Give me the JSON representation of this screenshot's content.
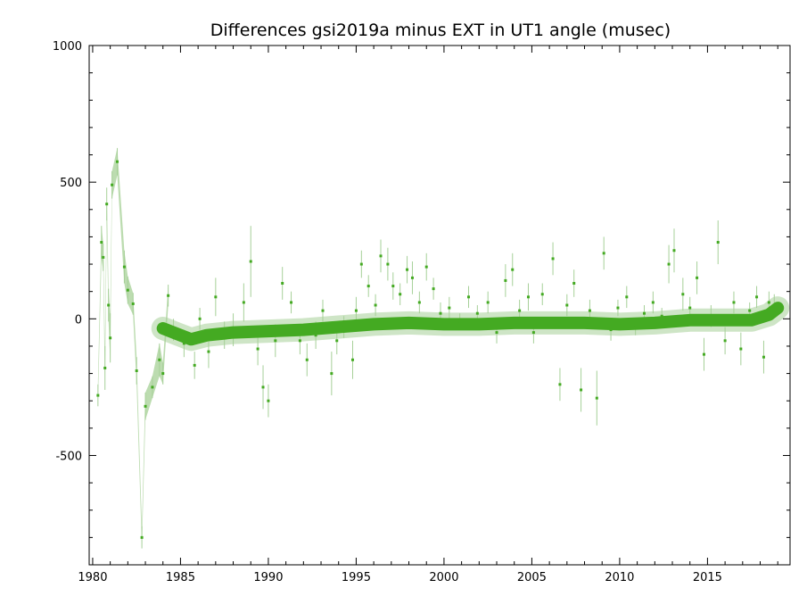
{
  "chart_data": {
    "type": "scatter",
    "title": "Differences gsi2019a minus EXT in UT1 angle    (musec)",
    "xlabel": "",
    "ylabel": "",
    "xlim": [
      1979.8,
      2019.7
    ],
    "ylim": [
      -900,
      1000
    ],
    "x_ticks": [
      1980,
      1985,
      1990,
      1995,
      2000,
      2005,
      2010,
      2015
    ],
    "x_tick_labels": [
      "1980",
      "1985",
      "1990",
      "1995",
      "2000",
      "2005",
      "2010",
      "2015"
    ],
    "y_ticks": [
      -500,
      0,
      500,
      1000
    ],
    "y_tick_labels": [
      "-500",
      "0",
      "500",
      "1000"
    ],
    "grid": false,
    "colors": {
      "points": "#44aa22",
      "error_bars": "#a6d098",
      "band": "#bcdcb0"
    },
    "series": [
      {
        "values": [
          [
            1980.3,
            -280,
            40
          ],
          [
            1980.5,
            280,
            60
          ],
          [
            1980.6,
            225,
            50
          ],
          [
            1980.7,
            -180,
            80
          ],
          [
            1980.8,
            420,
            60
          ],
          [
            1980.9,
            50,
            60
          ],
          [
            1981.0,
            -70,
            90
          ],
          [
            1981.1,
            490,
            50
          ],
          [
            1981.4,
            575,
            50
          ],
          [
            1981.8,
            190,
            60
          ],
          [
            1982.0,
            105,
            50
          ],
          [
            1982.3,
            55,
            40
          ],
          [
            1982.5,
            -190,
            50
          ],
          [
            1982.8,
            -800,
            40
          ],
          [
            1983.0,
            -320,
            50
          ],
          [
            1983.4,
            -250,
            40
          ],
          [
            1983.8,
            -150,
            60
          ],
          [
            1984.0,
            -200,
            40
          ],
          [
            1984.3,
            85,
            40
          ],
          [
            1984.6,
            -40,
            40
          ],
          [
            1985.2,
            -90,
            50
          ],
          [
            1985.8,
            -170,
            50
          ],
          [
            1986.1,
            0,
            40
          ],
          [
            1986.6,
            -120,
            60
          ],
          [
            1987.0,
            80,
            70
          ],
          [
            1987.5,
            -60,
            50
          ],
          [
            1988.0,
            -40,
            60
          ],
          [
            1988.6,
            60,
            70
          ],
          [
            1989.0,
            210,
            130
          ],
          [
            1989.4,
            -110,
            60
          ],
          [
            1989.7,
            -250,
            80
          ],
          [
            1990.0,
            -300,
            60
          ],
          [
            1990.4,
            -80,
            60
          ],
          [
            1990.8,
            130,
            60
          ],
          [
            1991.3,
            60,
            40
          ],
          [
            1991.8,
            -80,
            50
          ],
          [
            1992.2,
            -150,
            60
          ],
          [
            1992.7,
            -60,
            50
          ],
          [
            1993.1,
            30,
            40
          ],
          [
            1993.6,
            -200,
            80
          ],
          [
            1993.9,
            -80,
            50
          ],
          [
            1994.3,
            -30,
            40
          ],
          [
            1994.8,
            -150,
            70
          ],
          [
            1995.0,
            30,
            50
          ],
          [
            1995.3,
            200,
            50
          ],
          [
            1995.7,
            120,
            40
          ],
          [
            1996.1,
            50,
            40
          ],
          [
            1996.4,
            230,
            60
          ],
          [
            1996.8,
            200,
            60
          ],
          [
            1997.1,
            120,
            50
          ],
          [
            1997.5,
            90,
            40
          ],
          [
            1997.9,
            180,
            50
          ],
          [
            1998.2,
            150,
            60
          ],
          [
            1998.6,
            60,
            40
          ],
          [
            1999.0,
            190,
            50
          ],
          [
            1999.4,
            110,
            40
          ],
          [
            1999.8,
            20,
            40
          ],
          [
            2000.3,
            40,
            40
          ],
          [
            2000.9,
            -10,
            30
          ],
          [
            2001.4,
            80,
            40
          ],
          [
            2001.9,
            20,
            30
          ],
          [
            2002.5,
            60,
            40
          ],
          [
            2003.0,
            -50,
            40
          ],
          [
            2003.5,
            140,
            60
          ],
          [
            2003.9,
            180,
            60
          ],
          [
            2004.3,
            30,
            40
          ],
          [
            2004.8,
            80,
            50
          ],
          [
            2005.1,
            -50,
            40
          ],
          [
            2005.6,
            90,
            40
          ],
          [
            2006.2,
            220,
            60
          ],
          [
            2006.6,
            -240,
            60
          ],
          [
            2007.0,
            50,
            40
          ],
          [
            2007.4,
            130,
            50
          ],
          [
            2007.8,
            -260,
            80
          ],
          [
            2008.3,
            30,
            40
          ],
          [
            2008.7,
            -290,
            100
          ],
          [
            2009.1,
            240,
            60
          ],
          [
            2009.5,
            -40,
            40
          ],
          [
            2009.9,
            40,
            30
          ],
          [
            2010.4,
            80,
            40
          ],
          [
            2010.9,
            -30,
            30
          ],
          [
            2011.4,
            20,
            30
          ],
          [
            2011.9,
            60,
            40
          ],
          [
            2012.4,
            10,
            30
          ],
          [
            2012.8,
            200,
            70
          ],
          [
            2013.1,
            250,
            80
          ],
          [
            2013.6,
            90,
            60
          ],
          [
            2014.0,
            40,
            40
          ],
          [
            2014.4,
            150,
            60
          ],
          [
            2014.8,
            -130,
            60
          ],
          [
            2015.2,
            10,
            40
          ],
          [
            2015.6,
            280,
            80
          ],
          [
            2016.0,
            -80,
            50
          ],
          [
            2016.5,
            60,
            40
          ],
          [
            2016.9,
            -110,
            60
          ],
          [
            2017.4,
            30,
            30
          ],
          [
            2017.8,
            80,
            40
          ],
          [
            2018.2,
            -140,
            60
          ],
          [
            2018.5,
            60,
            40
          ],
          [
            2018.8,
            50,
            40
          ]
        ],
        "trend": [
          [
            1984.0,
            -35
          ],
          [
            1984.8,
            -55
          ],
          [
            1985.6,
            -75
          ],
          [
            1986.5,
            -60
          ],
          [
            1988.0,
            -50
          ],
          [
            1990.0,
            -45
          ],
          [
            1992.0,
            -40
          ],
          [
            1994.0,
            -30
          ],
          [
            1996.0,
            -20
          ],
          [
            1998.0,
            -15
          ],
          [
            2000.0,
            -20
          ],
          [
            2002.0,
            -20
          ],
          [
            2004.0,
            -15
          ],
          [
            2006.0,
            -15
          ],
          [
            2008.0,
            -15
          ],
          [
            2010.0,
            -20
          ],
          [
            2012.0,
            -15
          ],
          [
            2014.0,
            -5
          ],
          [
            2016.0,
            -5
          ],
          [
            2017.5,
            -5
          ],
          [
            2018.5,
            15
          ],
          [
            2019.0,
            40
          ]
        ]
      }
    ]
  }
}
